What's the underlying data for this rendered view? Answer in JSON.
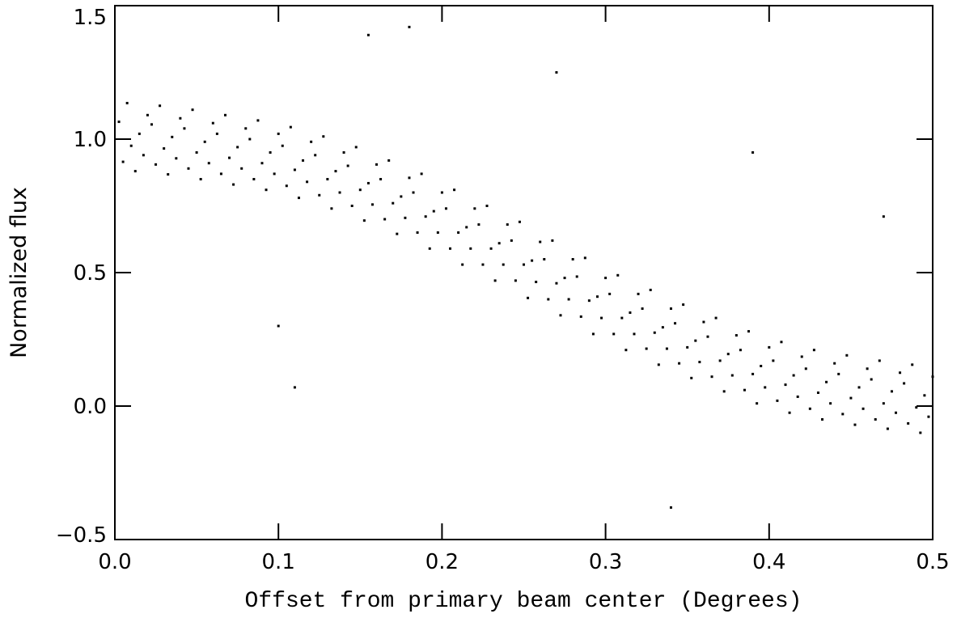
{
  "chart_data": {
    "type": "scatter",
    "xlabel": "Offset from primary beam center (Degrees)",
    "ylabel": "Normalized flux",
    "xlim": [
      0,
      0.5
    ],
    "ylim": [
      -0.5,
      1.5
    ],
    "xticks": [
      {
        "value": 0,
        "label": "0.0"
      },
      0.1,
      0.2,
      0.3,
      0.4,
      0.5
    ],
    "yticks": [
      {
        "value": -0.5,
        "label": "−0.5"
      },
      {
        "value": 0,
        "label": "0.0"
      },
      0.5,
      {
        "value": 1,
        "label": "1.0"
      },
      1.5
    ],
    "color": "#000000",
    "x": [
      0.0025,
      0.005,
      0.0075,
      0.01,
      0.0125,
      0.015,
      0.0175,
      0.02,
      0.0225,
      0.025,
      0.0275,
      0.03,
      0.0325,
      0.035,
      0.0375,
      0.04,
      0.0425,
      0.045,
      0.0475,
      0.05,
      0.0525,
      0.055,
      0.0575,
      0.06,
      0.0625,
      0.065,
      0.0675,
      0.07,
      0.0725,
      0.075,
      0.0775,
      0.08,
      0.0825,
      0.085,
      0.0875,
      0.09,
      0.0925,
      0.095,
      0.0975,
      0.1,
      0.1025,
      0.105,
      0.1075,
      0.11,
      0.1125,
      0.115,
      0.1175,
      0.12,
      0.1225,
      0.125,
      0.1275,
      0.13,
      0.1325,
      0.135,
      0.1375,
      0.14,
      0.1425,
      0.145,
      0.1475,
      0.15,
      0.1525,
      0.155,
      0.1575,
      0.16,
      0.1625,
      0.165,
      0.1675,
      0.17,
      0.1725,
      0.175,
      0.1775,
      0.18,
      0.1825,
      0.185,
      0.1875,
      0.19,
      0.1925,
      0.195,
      0.1975,
      0.2,
      0.2025,
      0.205,
      0.2075,
      0.21,
      0.2125,
      0.215,
      0.2175,
      0.22,
      0.2225,
      0.225,
      0.2275,
      0.23,
      0.2325,
      0.235,
      0.2375,
      0.24,
      0.2425,
      0.245,
      0.2475,
      0.25,
      0.2525,
      0.255,
      0.2575,
      0.26,
      0.2625,
      0.265,
      0.2675,
      0.27,
      0.2725,
      0.275,
      0.2775,
      0.28,
      0.2825,
      0.285,
      0.2875,
      0.29,
      0.2925,
      0.295,
      0.2975,
      0.3,
      0.3025,
      0.305,
      0.3075,
      0.31,
      0.3125,
      0.315,
      0.3175,
      0.32,
      0.3225,
      0.325,
      0.3275,
      0.33,
      0.3325,
      0.335,
      0.3375,
      0.34,
      0.3425,
      0.345,
      0.3475,
      0.35,
      0.3525,
      0.355,
      0.3575,
      0.36,
      0.3625,
      0.365,
      0.3675,
      0.37,
      0.3725,
      0.375,
      0.3775,
      0.38,
      0.3825,
      0.385,
      0.3875,
      0.39,
      0.3925,
      0.395,
      0.3975,
      0.4,
      0.4025,
      0.405,
      0.4075,
      0.41,
      0.4125,
      0.415,
      0.4175,
      0.42,
      0.4225,
      0.425,
      0.4275,
      0.43,
      0.4325,
      0.435,
      0.4375,
      0.44,
      0.4425,
      0.445,
      0.4475,
      0.45,
      0.4525,
      0.455,
      0.4575,
      0.46,
      0.4625,
      0.465,
      0.4675,
      0.47,
      0.4725,
      0.475,
      0.4775,
      0.48,
      0.4825,
      0.485,
      0.4875,
      0.49,
      0.4925,
      0.495,
      0.4975,
      0.5,
      0.155,
      0.18,
      0.27,
      0.39,
      0.11,
      0.1,
      0.34,
      0.47
    ],
    "values": [
      1.065,
      0.915,
      1.135,
      0.975,
      0.88,
      1.02,
      0.94,
      1.09,
      1.055,
      0.905,
      1.125,
      0.965,
      0.868,
      1.008,
      0.928,
      1.078,
      1.04,
      0.89,
      1.11,
      0.95,
      0.85,
      0.99,
      0.91,
      1.06,
      1.02,
      0.87,
      1.09,
      0.93,
      0.83,
      0.97,
      0.89,
      1.04,
      1.0,
      0.85,
      1.07,
      0.91,
      0.81,
      0.95,
      0.87,
      1.02,
      0.975,
      0.825,
      1.045,
      0.885,
      0.78,
      0.92,
      0.84,
      0.99,
      0.94,
      0.79,
      1.01,
      0.85,
      0.74,
      0.88,
      0.8,
      0.95,
      0.9,
      0.75,
      0.97,
      0.81,
      0.695,
      0.835,
      0.755,
      0.905,
      0.85,
      0.7,
      0.92,
      0.76,
      0.645,
      0.785,
      0.705,
      0.855,
      0.8,
      0.65,
      0.87,
      0.71,
      0.59,
      0.73,
      0.65,
      0.8,
      0.74,
      0.59,
      0.81,
      0.65,
      0.53,
      0.67,
      0.59,
      0.74,
      0.68,
      0.53,
      0.75,
      0.59,
      0.47,
      0.61,
      0.53,
      0.68,
      0.62,
      0.47,
      0.69,
      0.53,
      0.405,
      0.545,
      0.465,
      0.615,
      0.55,
      0.4,
      0.62,
      0.46,
      0.34,
      0.48,
      0.4,
      0.55,
      0.485,
      0.335,
      0.555,
      0.395,
      0.27,
      0.41,
      0.33,
      0.48,
      0.42,
      0.27,
      0.49,
      0.33,
      0.21,
      0.35,
      0.27,
      0.42,
      0.365,
      0.215,
      0.435,
      0.275,
      0.155,
      0.295,
      0.215,
      0.365,
      0.31,
      0.16,
      0.38,
      0.22,
      0.105,
      0.245,
      0.165,
      0.315,
      0.26,
      0.11,
      0.33,
      0.17,
      0.055,
      0.195,
      0.115,
      0.265,
      0.21,
      0.06,
      0.28,
      0.12,
      0.01,
      0.15,
      0.07,
      0.22,
      0.17,
      0.02,
      0.24,
      0.08,
      -0.025,
      0.115,
      0.035,
      0.185,
      0.14,
      -0.01,
      0.21,
      0.05,
      -0.05,
      0.09,
      0.01,
      0.16,
      0.12,
      -0.03,
      0.19,
      0.03,
      -0.07,
      0.07,
      -0.01,
      0.14,
      0.1,
      -0.05,
      0.17,
      0.01,
      -0.085,
      0.055,
      -0.025,
      0.125,
      0.085,
      -0.065,
      0.155,
      -0.005,
      -0.1,
      0.04,
      -0.04,
      0.11,
      1.39,
      1.42,
      1.25,
      0.95,
      0.07,
      0.3,
      -0.38,
      0.71
    ]
  }
}
